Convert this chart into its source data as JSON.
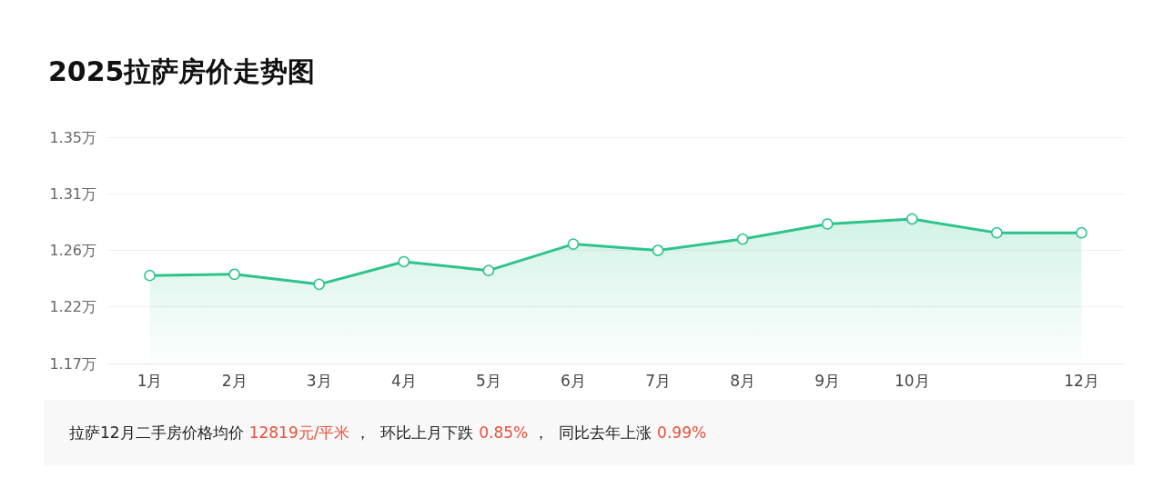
{
  "chart_data": {
    "type": "area",
    "title": "2025拉萨房价走势图",
    "categories": [
      "1月",
      "2月",
      "3月",
      "4月",
      "5月",
      "6月",
      "7月",
      "8月",
      "9月",
      "10月",
      null,
      "12月"
    ],
    "series": [
      {
        "color": "#2ec38b",
        "values": [
          1.24,
          1.241,
          1.233,
          1.251,
          1.244,
          1.265,
          1.26,
          1.269,
          1.281,
          1.285,
          1.274,
          1.274
        ]
      }
    ],
    "ylim": [
      1.17,
      1.35
    ],
    "yticks": [
      {
        "value": 1.17,
        "label": "1.17万"
      },
      {
        "value": 1.215,
        "label": "1.22万"
      },
      {
        "value": 1.26,
        "label": "1.26万"
      },
      {
        "value": 1.305,
        "label": "1.31万"
      },
      {
        "value": 1.35,
        "label": "1.35万"
      }
    ],
    "grid": "y",
    "marker": "circle",
    "line_style": "solid",
    "annotations": [
      "拉萨12月二手房价格均价",
      "12819元/平米",
      "，  环比上月下跌",
      "0.85%",
      "，  同比去年上涨",
      "0.99%"
    ]
  }
}
